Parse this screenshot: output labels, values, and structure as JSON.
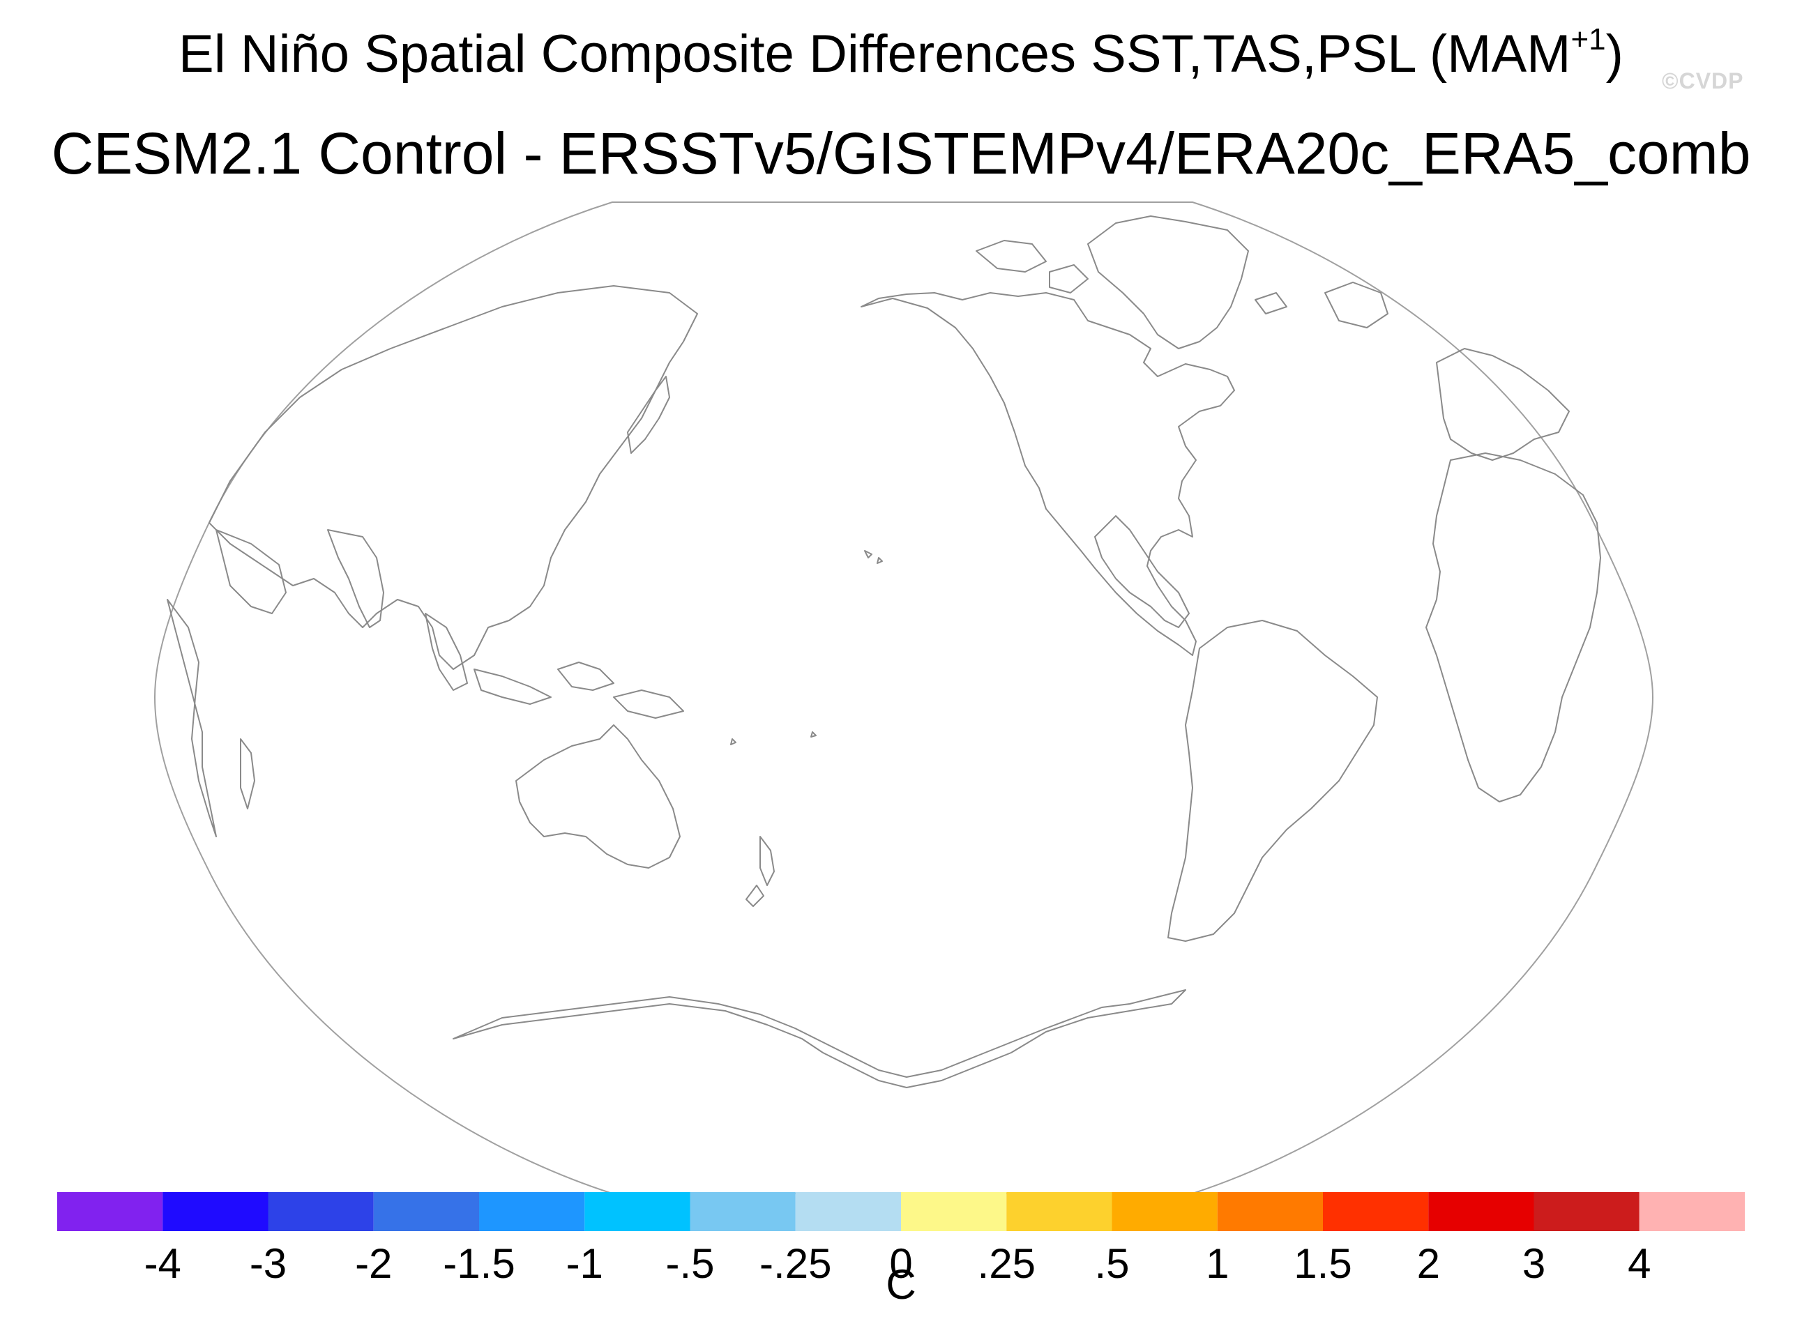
{
  "title": {
    "line1_prefix": "El Niño Spatial Composite Differences SST,TAS,PSL (MAM",
    "line1_sup": "+1",
    "line1_suffix": ")",
    "line2": "CESM2.1 Control - ERSSTv5/GISTEMPv4/ERA20c_ERA5_comb"
  },
  "watermark": "©CVDP",
  "map": {
    "projection": "Robinson",
    "central_longitude": 180,
    "coastline_color": "#8a8a8a",
    "frame_color": "#a0a0a0"
  },
  "colorbar": {
    "units": "C",
    "colors": [
      "#8122ef",
      "#1f0bff",
      "#2d42e8",
      "#3672e8",
      "#1e96ff",
      "#00c2ff",
      "#78c8f2",
      "#b4ddf2",
      "#fdf889",
      "#fdd12d",
      "#ffab00",
      "#ff7a00",
      "#ff3000",
      "#e60000",
      "#cc1c1c",
      "#ffb2b2"
    ],
    "ticks": [
      "-4",
      "-3",
      "-2",
      "-1.5",
      "-1",
      "-.5",
      "-.25",
      "0",
      ".25",
      ".5",
      "1",
      "1.5",
      "2",
      "3",
      "4"
    ]
  }
}
